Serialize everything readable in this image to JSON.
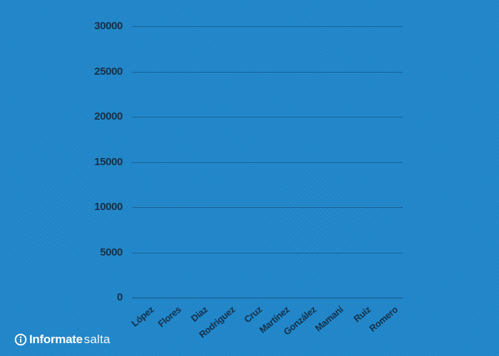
{
  "page": {
    "background_color": "#2187ca"
  },
  "branding": {
    "icon": "info-circle-icon",
    "title_bold": "Informate",
    "title_light": "salta",
    "text_color": "#ffffff"
  },
  "chart_data": {
    "type": "bar",
    "title": "",
    "xlabel": "",
    "ylabel": "",
    "categories": [
      "López",
      "Flores",
      "Diaz",
      "Rodriguez",
      "Cruz",
      "Martínez",
      "González",
      "Mamaní",
      "Ruiz",
      "Romero"
    ],
    "values": [
      0,
      0,
      0,
      0,
      0,
      0,
      0,
      0,
      0,
      0
    ],
    "ylim": [
      0,
      30000
    ],
    "yticks": [
      0,
      5000,
      10000,
      15000,
      20000,
      25000,
      30000
    ],
    "grid": true,
    "legend_position": "none",
    "x_tick_rotation_deg": -40,
    "axis_text_color": "#14314a",
    "gridline_color": "rgba(9,42,64,0.38)",
    "baseline_color": "rgba(9,42,64,0.5)"
  }
}
